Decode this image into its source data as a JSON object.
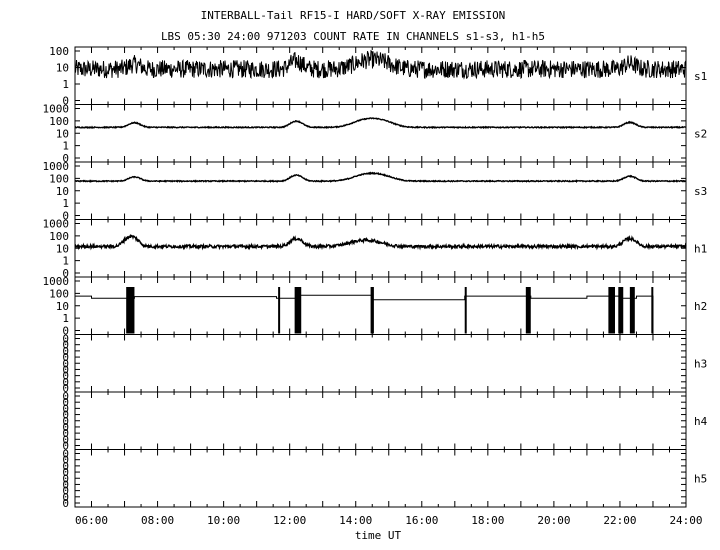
{
  "chart_data": {
    "type": "line",
    "title": "INTERBALL-Tail RF15-I HARD/SOFT X-RAY EMISSION",
    "subtitle": "LBS 05:30 24:00 971203  COUNT RATE IN CHANNELS s1-s3, h1-h5",
    "xlabel": "time UT",
    "x_ticks": [
      "06:00",
      "08:00",
      "10:00",
      "12:00",
      "14:00",
      "16:00",
      "18:00",
      "20:00",
      "22:00",
      "24:00"
    ],
    "x_tick_hours": [
      6,
      8,
      10,
      12,
      14,
      16,
      18,
      20,
      22,
      24
    ],
    "xlim_hours": [
      5.5,
      24.0
    ],
    "y_scale": "log",
    "panels": [
      {
        "channel": "s1",
        "y_ticks": [
          "100",
          "10",
          "1",
          "0"
        ],
        "baseline": 8,
        "noise": "high",
        "peaks": [
          [
            7.3,
            16
          ],
          [
            12.2,
            25
          ],
          [
            14.5,
            30
          ],
          [
            22.3,
            17
          ]
        ]
      },
      {
        "channel": "s2",
        "y_ticks": [
          "1000",
          "100",
          "10",
          "1",
          "0"
        ],
        "baseline": 30,
        "noise": "low",
        "peaks": [
          [
            7.3,
            70
          ],
          [
            12.2,
            95
          ],
          [
            14.5,
            160
          ],
          [
            22.3,
            75
          ]
        ]
      },
      {
        "channel": "s3",
        "y_ticks": [
          "1000",
          "100",
          "10",
          "1",
          "0"
        ],
        "baseline": 60,
        "noise": "low",
        "peaks": [
          [
            7.3,
            130
          ],
          [
            12.2,
            180
          ],
          [
            14.5,
            260
          ],
          [
            22.3,
            150
          ]
        ]
      },
      {
        "channel": "h1",
        "y_ticks": [
          "1000",
          "100",
          "10",
          "1",
          "0"
        ],
        "baseline": 14,
        "noise": "medium",
        "peaks": [
          [
            7.2,
            90
          ],
          [
            12.2,
            60
          ],
          [
            14.3,
            45
          ],
          [
            22.3,
            60
          ]
        ]
      },
      {
        "channel": "h2",
        "y_ticks": [
          "1000",
          "100",
          "10",
          "1",
          "0"
        ],
        "step_line": [
          [
            5.5,
            60
          ],
          [
            6.0,
            60
          ],
          [
            6.0,
            40
          ],
          [
            7.3,
            40
          ],
          [
            7.3,
            55
          ],
          [
            11.6,
            55
          ],
          [
            11.6,
            40
          ],
          [
            12.3,
            40
          ],
          [
            12.3,
            70
          ],
          [
            14.5,
            70
          ],
          [
            14.5,
            30
          ],
          [
            17.3,
            30
          ],
          [
            17.3,
            60
          ],
          [
            19.3,
            60
          ],
          [
            19.3,
            40
          ],
          [
            21.0,
            40
          ],
          [
            21.0,
            60
          ],
          [
            22.0,
            60
          ],
          [
            22.0,
            40
          ],
          [
            22.5,
            40
          ],
          [
            22.5,
            60
          ],
          [
            23.0,
            60
          ],
          [
            23.0,
            0
          ]
        ],
        "bursts": [
          [
            7.05,
            7.3
          ],
          [
            11.65,
            11.7
          ],
          [
            12.15,
            12.35
          ],
          [
            14.45,
            14.55
          ],
          [
            17.3,
            17.35
          ],
          [
            19.15,
            19.3
          ],
          [
            21.65,
            21.85
          ],
          [
            21.95,
            22.1
          ],
          [
            22.3,
            22.45
          ],
          [
            22.95,
            23.0
          ]
        ]
      },
      {
        "channel": "h3",
        "y_ticks": [
          "0",
          "0",
          "0",
          "0",
          "0",
          "0",
          "0",
          "0",
          "0"
        ]
      },
      {
        "channel": "h4",
        "y_ticks": [
          "0",
          "0",
          "0",
          "0",
          "0",
          "0",
          "0",
          "0",
          "0"
        ]
      },
      {
        "channel": "h5",
        "y_ticks": [
          "0",
          "0",
          "0",
          "0",
          "0",
          "0",
          "0",
          "0",
          "0"
        ]
      }
    ]
  }
}
